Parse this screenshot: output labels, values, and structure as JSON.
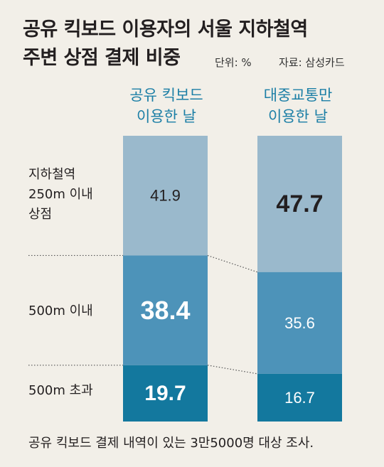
{
  "title_line1": "공유 킥보드 이용자의 서울 지하철역",
  "title_line2": "주변 상점 결제 비중",
  "unit": "단위: %",
  "source": "자료: 삼성카드",
  "footnote": "공유 킥보드 결제 내역이 있는 3만5000명 대상 조사.",
  "colors": {
    "top": "#9ab9cc",
    "middle": "#4d93b9",
    "bottom": "#13789e",
    "header_text": "#1c7fa6"
  },
  "chart_data": {
    "type": "bar",
    "stacked": true,
    "orientation": "vertical",
    "categories": [
      "공유 킥보드\n이용한 날",
      "대중교통만\n이용한 날"
    ],
    "segment_labels": [
      "지하철역\n250m 이내\n상점",
      "500m 이내",
      "500m 초과"
    ],
    "series": [
      {
        "name": "지하철역 250m 이내 상점",
        "values": [
          41.9,
          47.7
        ]
      },
      {
        "name": "500m 이내",
        "values": [
          38.4,
          35.6
        ]
      },
      {
        "name": "500m 초과",
        "values": [
          19.7,
          16.7
        ]
      }
    ],
    "data_labels": [
      [
        "41.9",
        "47.7"
      ],
      [
        "38.4",
        "35.6"
      ],
      [
        "19.7",
        "16.7"
      ]
    ],
    "ylim": [
      0,
      100
    ]
  }
}
